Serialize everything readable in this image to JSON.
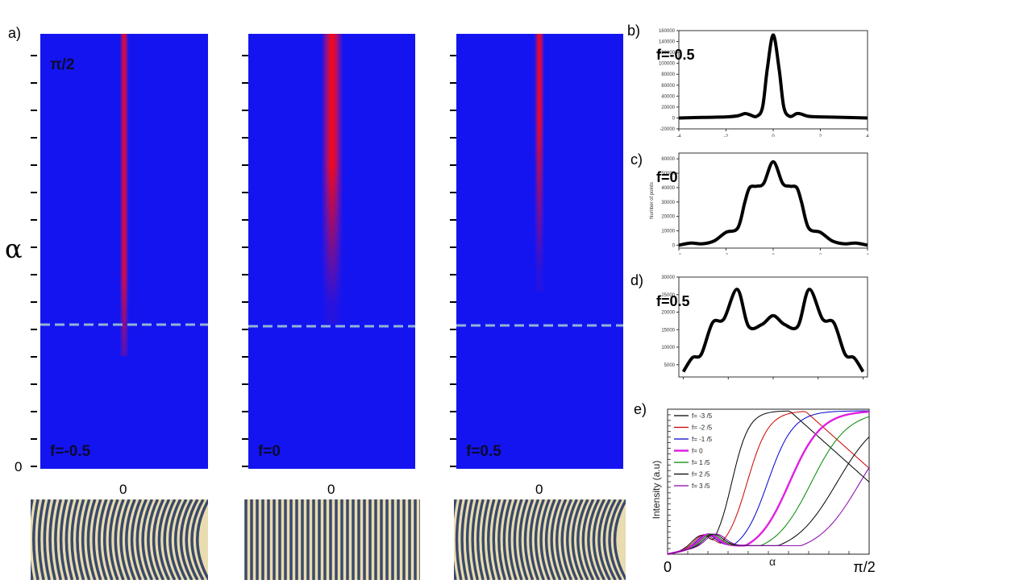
{
  "labels": {
    "panel_a": "a)",
    "panel_b": "b)",
    "panel_c": "c)",
    "panel_d": "d)",
    "panel_e": "e)",
    "top_alpha": "π/2",
    "bottom_alpha": "0",
    "y_axis": "α",
    "x_zero": "0"
  },
  "colors": {
    "heat_bg": "#1414f0",
    "heat_peak": "#ff0000",
    "dash": "#8fb4d8"
  },
  "chart_data": [
    {
      "type": "heatmap",
      "panel": "a-left",
      "label": "f=-0.5",
      "x_tick": "0",
      "y_top_label": "π/2",
      "y_bottom_label": "0",
      "y_label": "α"
    },
    {
      "type": "heatmap",
      "panel": "a-middle",
      "label": "f=0",
      "x_tick": "0"
    },
    {
      "type": "heatmap",
      "panel": "a-right",
      "label": "f=0.5",
      "x_tick": "0"
    },
    {
      "type": "line",
      "panel": "b",
      "label": "f=-0.5",
      "xlim": [
        -4,
        4
      ],
      "ylim": [
        -20000,
        160000
      ],
      "x_ticks": [
        "-4",
        "-2",
        "0",
        "2",
        "4"
      ],
      "y_ticks": [
        "-20000",
        "0",
        "20000",
        "40000",
        "60000",
        "80000",
        "100000",
        "120000",
        "140000",
        "160000"
      ],
      "x": [
        -4,
        -3,
        -2,
        -1.5,
        -1.2,
        -1,
        -0.7,
        -0.45,
        -0.25,
        0,
        0.25,
        0.45,
        0.7,
        1,
        1.2,
        1.5,
        2,
        3,
        4
      ],
      "y": [
        0,
        1000,
        2000,
        4000,
        8000,
        6000,
        3000,
        20000,
        90000,
        152000,
        90000,
        20000,
        3000,
        8000,
        7000,
        3000,
        2000,
        1000,
        0
      ]
    },
    {
      "type": "line",
      "panel": "c",
      "label": "f=0",
      "ylabel": "Number of points",
      "xlim": [
        -4,
        4
      ],
      "ylim": [
        -2000,
        64000
      ],
      "x_ticks": [
        "-4",
        "-2",
        "0",
        "2",
        "4"
      ],
      "y_ticks": [
        "0",
        "10000",
        "20000",
        "30000",
        "40000",
        "50000",
        "60000"
      ],
      "x": [
        -4,
        -3.5,
        -3,
        -2.5,
        -2,
        -1.5,
        -1.2,
        -1,
        -0.7,
        -0.4,
        0,
        0.4,
        0.7,
        1,
        1.2,
        1.5,
        2,
        2.5,
        3,
        3.5,
        4
      ],
      "y": [
        0,
        1500,
        1000,
        3000,
        9000,
        12000,
        30000,
        40000,
        41000,
        43000,
        58000,
        43000,
        41000,
        40000,
        30000,
        12000,
        9000,
        3000,
        1000,
        1500,
        0
      ]
    },
    {
      "type": "line",
      "panel": "d",
      "label": "f=0.5",
      "xlim": [
        -4.2,
        4.2
      ],
      "ylim": [
        1500,
        30000
      ],
      "x_ticks": [
        "-4",
        "-2",
        "0",
        "2",
        "4"
      ],
      "y_ticks": [
        "5000",
        "10000",
        "15000",
        "20000",
        "25000",
        "30000"
      ],
      "x": [
        -4,
        -3.6,
        -3.2,
        -2.7,
        -2.2,
        -1.6,
        -1.1,
        -0.5,
        0,
        0.5,
        1.1,
        1.6,
        2.2,
        2.7,
        3.2,
        3.6,
        4
      ],
      "y": [
        3000,
        7000,
        8000,
        17000,
        18000,
        26500,
        16000,
        16500,
        19000,
        16500,
        16000,
        26500,
        18000,
        17000,
        8000,
        7000,
        3000
      ]
    },
    {
      "type": "line",
      "panel": "e",
      "ylabel": "Intensity (a.u)",
      "xlabel": "α",
      "x_ticks": [
        "0",
        "π/2"
      ],
      "xlim": [
        0,
        1.5708
      ],
      "ylim": [
        0,
        1
      ],
      "series": [
        {
          "name": "f= -3 /5",
          "color": "#000000",
          "x0": 0.5,
          "k": 15,
          "amp": 1.0
        },
        {
          "name": "f= -2 /5",
          "color": "#cc0000",
          "x0": 0.62,
          "k": 12,
          "amp": 1.0
        },
        {
          "name": "f= -1 /5",
          "color": "#0000cc",
          "x0": 0.78,
          "k": 10,
          "amp": 1.0
        },
        {
          "name": "f= 0",
          "color": "#e020e0",
          "x0": 0.95,
          "k": 8,
          "amp": 1.0,
          "thick": true
        },
        {
          "name": "f= 1 /5",
          "color": "#008800",
          "x0": 1.12,
          "k": 7,
          "amp": 1.0
        },
        {
          "name": "f= 2 /5",
          "color": "#000000",
          "x0": 1.32,
          "k": 6,
          "amp": 1.0
        },
        {
          "name": "f= 3 /5",
          "color": "#8800aa",
          "x0": 1.5,
          "k": 6,
          "amp": 1.0
        }
      ]
    }
  ]
}
